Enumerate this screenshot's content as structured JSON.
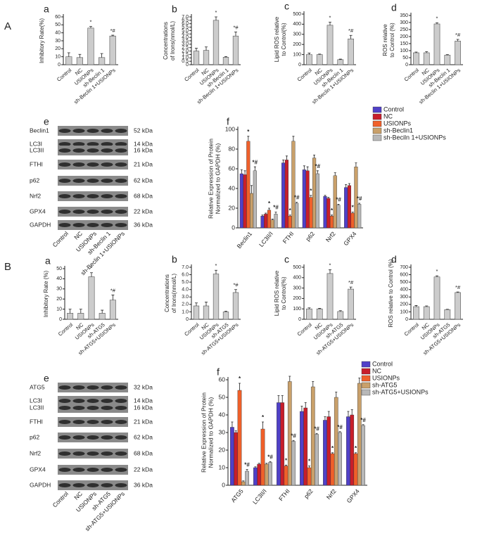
{
  "section_labels": [
    "A",
    "B"
  ],
  "chart_data": [
    {
      "type": "bar",
      "label": "a",
      "ylabel": [
        "Inhibitory Rate(%)"
      ],
      "categories": [
        "Control",
        "NC",
        "USIONPs",
        "sh-Beclin 1",
        "sh-Beclin 1+USIONPs"
      ],
      "values": [
        10,
        9,
        46,
        9,
        36
      ],
      "errors": [
        5,
        4,
        2,
        5,
        1
      ],
      "annotations": [
        null,
        null,
        "*",
        null,
        "*#"
      ],
      "color": "#cccccc",
      "ylim": [
        0,
        60
      ],
      "yticks": [
        0,
        10,
        20,
        30,
        40,
        50,
        60
      ]
    },
    {
      "type": "bar",
      "label": "b",
      "ylabel": [
        "Concentrations",
        "of Irons(nmol/L)"
      ],
      "categories": [
        "Control",
        "NC",
        "USIONPs",
        "sh-Beclin 1",
        "sh-Beclin 1+USIONPs"
      ],
      "values": [
        2.0,
        2.1,
        6.5,
        1.1,
        4.2
      ],
      "errors": [
        0.4,
        0.5,
        0.5,
        0.1,
        0.6
      ],
      "annotations": [
        null,
        null,
        "*",
        null,
        "*#"
      ],
      "color": "#cccccc",
      "ylim": [
        0,
        7
      ],
      "yticks": [
        0,
        0.5,
        {
          "value": 1,
          "label": "1.0"
        },
        1.5,
        {
          "value": 2,
          "label": "2.0"
        },
        2.5,
        {
          "value": 3,
          "label": "3.0"
        },
        3.5,
        {
          "value": 4,
          "label": "4.0"
        },
        4.5,
        {
          "value": 5,
          "label": "5.0"
        },
        5.5,
        {
          "value": 6,
          "label": "6.0"
        },
        6.5,
        {
          "value": 7,
          "label": "7.0"
        }
      ]
    },
    {
      "type": "bar",
      "label": "c",
      "ylabel": [
        "Lipid ROS relative",
        "to Control(%)"
      ],
      "categories": [
        "Control",
        "NC",
        "USIONPs",
        "sh-Beclin 1",
        "sh-Beclin 1+USIONPs"
      ],
      "values": [
        100,
        100,
        390,
        50,
        255
      ],
      "errors": [
        15,
        5,
        30,
        5,
        35
      ],
      "annotations": [
        null,
        null,
        "*",
        null,
        "*#"
      ],
      "color": "#cccccc",
      "ylim": [
        0,
        500
      ],
      "yticks": [
        0,
        100,
        200,
        300,
        400,
        500
      ]
    },
    {
      "type": "bar",
      "label": "d",
      "ylabel": [
        "ROS relative",
        "to Control (%)"
      ],
      "categories": [
        "Control",
        "NC",
        "USIONPs",
        "sh-Beclin 1",
        "sh-Beclin 1+USIONPs"
      ],
      "values": [
        85,
        85,
        290,
        68,
        168
      ],
      "errors": [
        5,
        8,
        8,
        4,
        12
      ],
      "annotations": [
        null,
        null,
        "*",
        null,
        "*#"
      ],
      "color": "#cccccc",
      "ylim": [
        0,
        350
      ],
      "yticks": [
        0,
        50,
        100,
        150,
        200,
        250,
        300,
        350
      ]
    },
    {
      "type": "grouped_bar",
      "label": "f",
      "ylabel": [
        "Relative Expression of Protein",
        "Normalized to GAPDH (%)"
      ],
      "categories": [
        "Beclin1",
        "LC3II/I",
        "FTHI",
        "p62",
        "Nrf2",
        "GPX4"
      ],
      "ylim": [
        0,
        100
      ],
      "yticks": [
        0,
        20,
        40,
        60,
        80,
        100
      ],
      "series": [
        {
          "name": "Control",
          "color": "#5040c8",
          "values": [
            55,
            12,
            66,
            59,
            32,
            41
          ],
          "errors": [
            4,
            1,
            3,
            4,
            1,
            3
          ],
          "annotations": [
            null,
            null,
            null,
            null,
            null,
            null
          ]
        },
        {
          "name": "NC",
          "color": "#c81e2a",
          "values": [
            54,
            14,
            69,
            58,
            30,
            43
          ],
          "errors": [
            4,
            1,
            4,
            4,
            1,
            2
          ],
          "annotations": [
            null,
            null,
            null,
            null,
            null,
            null
          ]
        },
        {
          "name": "USIONPs",
          "color": "#f0602a",
          "values": [
            88,
            18,
            12,
            31,
            12,
            15
          ],
          "errors": [
            5,
            2,
            1,
            2,
            1,
            1
          ],
          "annotations": [
            "*",
            "*",
            "*",
            "*",
            "*",
            "*"
          ]
        },
        {
          "name": "sh-Beclin1",
          "color": "#c9a06a",
          "values": [
            35,
            8,
            88,
            71,
            53,
            62
          ],
          "errors": [
            8,
            1,
            5,
            3,
            3,
            4
          ],
          "annotations": [
            null,
            null,
            null,
            null,
            null,
            null
          ]
        },
        {
          "name": "sh-Beciln 1+USIONPs",
          "color": "#b8b8b8",
          "values": [
            58,
            14,
            25,
            55,
            23,
            24
          ],
          "errors": [
            4,
            2,
            1,
            3,
            1,
            1
          ],
          "annotations": [
            "*#",
            "*#",
            "*#",
            "*#",
            "*#",
            "*#"
          ]
        }
      ]
    },
    {
      "type": "bar",
      "label": "a",
      "ylabel": [
        "Inhibitory Rate (%)"
      ],
      "categories": [
        "Control",
        "NC",
        "USIONPs",
        "sh-ATG5",
        "sh-ATG5+USIONPs"
      ],
      "values": [
        6,
        6,
        42,
        6,
        19
      ],
      "errors": [
        4,
        4,
        4,
        3,
        5
      ],
      "annotations": [
        null,
        null,
        "*",
        null,
        "*#"
      ],
      "color": "#cccccc",
      "ylim": [
        0,
        50
      ],
      "yticks": [
        0,
        10,
        20,
        30,
        40,
        50
      ]
    },
    {
      "type": "bar",
      "label": "b",
      "ylabel": [
        "Concentrations",
        "of Irons(nmol/L)"
      ],
      "categories": [
        "Control",
        "NC",
        "USIONPs",
        "sh-ATG5",
        "sh-ATG5+USIONPs"
      ],
      "values": [
        1.8,
        1.8,
        6.1,
        1.0,
        3.6
      ],
      "errors": [
        0.4,
        0.5,
        0.5,
        0.1,
        0.4
      ],
      "annotations": [
        null,
        null,
        "*",
        null,
        "*#"
      ],
      "color": "#cccccc",
      "ylim": [
        0,
        7
      ],
      "yticks": [
        0,
        {
          "value": 1,
          "label": "1.0"
        },
        {
          "value": 2,
          "label": "2.0"
        },
        {
          "value": 3,
          "label": "3.0"
        },
        {
          "value": 4,
          "label": "4.0"
        },
        {
          "value": 5,
          "label": "5.0"
        },
        {
          "value": 6,
          "label": "6.0"
        },
        {
          "value": 7,
          "label": "7.0"
        }
      ]
    },
    {
      "type": "bar",
      "label": "c",
      "ylabel": [
        "Lipid ROS relative",
        "to Control(%)"
      ],
      "categories": [
        "Control",
        "NC",
        "USIONPs",
        "sh-ATG5",
        "sh-ATG5+USIONPs"
      ],
      "values": [
        100,
        100,
        440,
        75,
        290
      ],
      "errors": [
        10,
        5,
        35,
        8,
        20
      ],
      "annotations": [
        null,
        null,
        "*",
        null,
        "*#"
      ],
      "color": "#cccccc",
      "ylim": [
        0,
        500
      ],
      "yticks": [
        0,
        100,
        200,
        300,
        400,
        500
      ]
    },
    {
      "type": "bar",
      "label": "d",
      "ylabel": [
        "ROS relative to Control (%)"
      ],
      "categories": [
        "Control",
        "NC",
        "USIONPs",
        "sh-ATG5",
        "sh-ATG5+USIONPs"
      ],
      "values": [
        170,
        170,
        570,
        130,
        360
      ],
      "errors": [
        15,
        10,
        15,
        5,
        8
      ],
      "annotations": [
        null,
        null,
        "*",
        null,
        "*#"
      ],
      "color": "#cccccc",
      "ylim": [
        0,
        700
      ],
      "yticks": [
        0,
        100,
        200,
        300,
        400,
        500,
        600,
        700
      ]
    },
    {
      "type": "grouped_bar",
      "label": "f",
      "ylabel": [
        "Relative Expression of Protein",
        "Normalized to GAPDH (%)"
      ],
      "categories": [
        "ATG5",
        "LC3II/I",
        "FTHI",
        "p62",
        "Nrf2",
        "GPX4"
      ],
      "ylim": [
        0,
        60
      ],
      "yticks": [
        0,
        10,
        20,
        30,
        40,
        50,
        60
      ],
      "series": [
        {
          "name": "Control",
          "color": "#5040c8",
          "values": [
            33,
            10,
            47,
            42,
            37,
            39
          ],
          "errors": [
            3,
            0.5,
            4,
            3,
            2,
            3
          ],
          "annotations": [
            null,
            null,
            null,
            null,
            null,
            null
          ]
        },
        {
          "name": "NC",
          "color": "#c81e2a",
          "values": [
            30,
            12,
            47,
            44,
            39,
            40
          ],
          "errors": [
            1,
            0.5,
            4,
            3,
            3,
            3
          ],
          "annotations": [
            null,
            null,
            null,
            null,
            null,
            null
          ]
        },
        {
          "name": "USIONPs",
          "color": "#f0602a",
          "values": [
            54,
            32,
            11,
            10,
            18,
            18
          ],
          "errors": [
            4,
            4,
            0.5,
            1,
            0.5,
            0.5
          ],
          "annotations": [
            "*",
            "*",
            "*",
            "*",
            "*",
            "*"
          ]
        },
        {
          "name": "sh-ATG5",
          "color": "#c9a06a",
          "values": [
            2,
            12,
            59,
            56,
            50,
            58
          ],
          "errors": [
            0.5,
            0.5,
            3,
            3,
            3,
            3
          ],
          "annotations": [
            null,
            null,
            null,
            null,
            null,
            null
          ]
        },
        {
          "name": "sh-ATG5+USIONPs",
          "color": "#b8b8b8",
          "values": [
            8,
            13,
            25,
            29,
            30,
            34
          ],
          "errors": [
            1,
            0.5,
            0.5,
            0.5,
            0.5,
            0.5
          ],
          "annotations": [
            "*#",
            "*#",
            "*#",
            "*#",
            "*#",
            "*#"
          ]
        }
      ]
    }
  ],
  "blots": [
    {
      "label": "e",
      "lanes": [
        "Control",
        "NC",
        "USIONPs",
        "sh-Beclin 1",
        "sh-Beclin 1+USIONPs"
      ],
      "rows": [
        {
          "name": "Beclin1",
          "size": "52 kDa"
        },
        {
          "name": "LC3I",
          "size": "14 kDa"
        },
        {
          "name": "LC3II",
          "size": "16 kDa"
        },
        {
          "name": "FTHI",
          "size": "21 kDa"
        },
        {
          "name": "p62",
          "size": "62 kDa"
        },
        {
          "name": "Nrf2",
          "size": "68 kDa"
        },
        {
          "name": "GPX4",
          "size": "22 kDa"
        },
        {
          "name": "GAPDH",
          "size": "36 kDa"
        }
      ]
    },
    {
      "label": "e",
      "lanes": [
        "Control",
        "NC",
        "USIONPs",
        "sh-ATG5",
        "sh-ATG5+USIONPs"
      ],
      "rows": [
        {
          "name": "ATG5",
          "size": "32 kDa"
        },
        {
          "name": "LC3I",
          "size": "14 kDa"
        },
        {
          "name": "LC3II",
          "size": "16 kDa"
        },
        {
          "name": "FTHI",
          "size": "21 kDa"
        },
        {
          "name": "p62",
          "size": "62 kDa"
        },
        {
          "name": "Nrf2",
          "size": "68 kDa"
        },
        {
          "name": "GPX4",
          "size": "22 kDa"
        },
        {
          "name": "GAPDH",
          "size": "36 kDa"
        }
      ]
    }
  ]
}
